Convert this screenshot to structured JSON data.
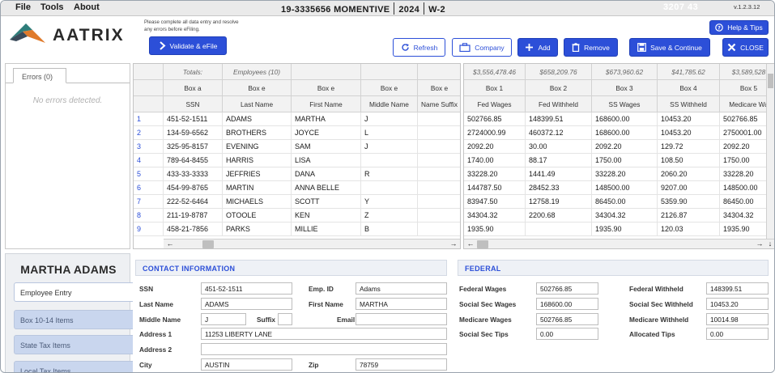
{
  "menu": {
    "file": "File",
    "tools": "Tools",
    "about": "About"
  },
  "title": {
    "ein_company": "19-3335656 MOMENTIVE",
    "year": "2024",
    "form": "W-2"
  },
  "header_number": "3207 43",
  "version": "v.1.2.3.12",
  "logo_text": "AATRIX",
  "notice": "Please complete all data entry and resolve any errors before eFiling.",
  "buttons": {
    "validate": "Validate & eFile",
    "help": "Help & Tips",
    "refresh": "Refresh",
    "company": "Company",
    "add": "Add",
    "remove": "Remove",
    "save": "Save & Continue",
    "close": "CLOSE"
  },
  "errors": {
    "tab": "Errors (0)",
    "empty": "No errors detected."
  },
  "grid_left": {
    "totals_label": "Totals:",
    "employees_label": "Employees (10)",
    "box_row": [
      "Box a",
      "Box e",
      "Box e",
      "Box e",
      "Box e"
    ],
    "columns": [
      "SSN",
      "Last Name",
      "First Name",
      "Middle Name",
      "Name Suffix"
    ],
    "rows": [
      [
        "451-52-1511",
        "ADAMS",
        "MARTHA",
        "J",
        ""
      ],
      [
        "134-59-6562",
        "BROTHERS",
        "JOYCE",
        "L",
        ""
      ],
      [
        "325-95-8157",
        "EVENING",
        "SAM",
        "J",
        ""
      ],
      [
        "789-64-8455",
        "HARRIS",
        "LISA",
        "",
        ""
      ],
      [
        "433-33-3333",
        "JEFFRIES",
        "DANA",
        "R",
        ""
      ],
      [
        "454-99-8765",
        "MARTIN",
        "ANNA BELLE",
        "",
        ""
      ],
      [
        "222-52-6464",
        "MICHAELS",
        "SCOTT",
        "Y",
        ""
      ],
      [
        "211-19-8787",
        "OTOOLE",
        "KEN",
        "Z",
        ""
      ],
      [
        "458-21-7856",
        "PARKS",
        "MILLIE",
        "B",
        ""
      ]
    ]
  },
  "row_numbers": [
    "1",
    "2",
    "3",
    "4",
    "5",
    "6",
    "7",
    "8",
    "9"
  ],
  "grid_right": {
    "totals": [
      "$3,556,478.46",
      "$658,209.76",
      "$673,960.62",
      "$41,785.62",
      "$3,589,528"
    ],
    "box_row": [
      "Box 1",
      "Box 2",
      "Box 3",
      "Box 4",
      "Box 5"
    ],
    "columns": [
      "Fed Wages",
      "Fed Withheld",
      "SS Wages",
      "SS Withheld",
      "Medicare Wa"
    ],
    "rows": [
      [
        "502766.85",
        "148399.51",
        "168600.00",
        "10453.20",
        "502766.85"
      ],
      [
        "2724000.99",
        "460372.12",
        "168600.00",
        "10453.20",
        "2750001.00"
      ],
      [
        "2092.20",
        "30.00",
        "2092.20",
        "129.72",
        "2092.20"
      ],
      [
        "1740.00",
        "88.17",
        "1750.00",
        "108.50",
        "1750.00"
      ],
      [
        "33228.20",
        "1441.49",
        "33228.20",
        "2060.20",
        "33228.20"
      ],
      [
        "144787.50",
        "28452.33",
        "148500.00",
        "9207.00",
        "148500.00"
      ],
      [
        "83947.50",
        "12758.19",
        "86450.00",
        "5359.90",
        "86450.00"
      ],
      [
        "34304.32",
        "2200.68",
        "34304.32",
        "2126.87",
        "34304.32"
      ],
      [
        "1935.90",
        "",
        "1935.90",
        "120.03",
        "1935.90"
      ]
    ]
  },
  "employee_panel": {
    "name": "MARTHA ADAMS",
    "tabs": [
      "Employee Entry",
      "Box 10-14 Items",
      "State Tax Items",
      "Local Tax Items"
    ]
  },
  "contact": {
    "heading": "CONTACT INFORMATION",
    "ssn_label": "SSN",
    "ssn": "451-52-1511",
    "emp_id_label": "Emp. ID",
    "emp_id": "Adams",
    "last_name_label": "Last Name",
    "last_name": "ADAMS",
    "first_name_label": "First Name",
    "first_name": "MARTHA",
    "middle_name_label": "Middle Name",
    "middle_name": "J",
    "suffix_label": "Suffix",
    "suffix": "",
    "email_label": "Email",
    "email": "",
    "address1_label": "Address 1",
    "address1": "11253 LIBERTY LANE",
    "address2_label": "Address 2",
    "address2": "",
    "city_label": "City",
    "city": "AUSTIN",
    "zip_label": "Zip",
    "zip": "78759"
  },
  "federal": {
    "heading": "FEDERAL",
    "fed_wages_label": "Federal Wages",
    "fed_wages": "502766.85",
    "fed_withheld_label": "Federal Withheld",
    "fed_withheld": "148399.51",
    "ss_wages_label": "Social Sec Wages",
    "ss_wages": "168600.00",
    "ss_withheld_label": "Social Sec Withheld",
    "ss_withheld": "10453.20",
    "medicare_wages_label": "Medicare Wages",
    "medicare_wages": "502766.85",
    "medicare_withheld_label": "Medicare Withheld",
    "medicare_withheld": "10014.98",
    "ss_tips_label": "Social Sec Tips",
    "ss_tips": "0.00",
    "allocated_tips_label": "Allocated Tips",
    "allocated_tips": "0.00"
  },
  "colors": {
    "accent": "#2c4fd8",
    "nav_idle": "#c9d6ee",
    "section_head": "#eef1f6"
  }
}
